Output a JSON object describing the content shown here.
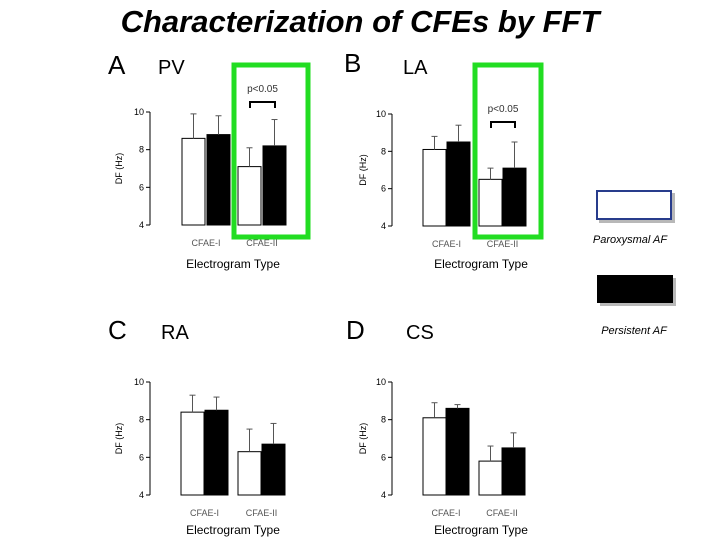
{
  "title": "Characterization of CFEs by FFT",
  "legend": {
    "paroxysmal": {
      "label": "Paroxysmal AF",
      "color": "#ffffff",
      "border": "#283c8c"
    },
    "persistent": {
      "label": "Persistent AF",
      "color": "#000000",
      "border": "#000000"
    }
  },
  "highlight_color": "#22dd22",
  "chart_data": [
    {
      "panel": "A",
      "region": "PV",
      "type": "bar",
      "xlabel": "Electrogram Type",
      "ylabel": "DF (Hz)",
      "ylim": [
        4,
        10
      ],
      "yticks": [
        4,
        6,
        8,
        10
      ],
      "categories": [
        "CFAE-I",
        "CFAE-II"
      ],
      "series": [
        {
          "name": "Paroxysmal AF",
          "values": [
            8.6,
            7.1
          ],
          "errors": [
            1.3,
            1.0
          ]
        },
        {
          "name": "Persistent AF",
          "values": [
            8.8,
            8.2
          ],
          "errors": [
            1.0,
            1.4
          ]
        }
      ],
      "annotation": "p<0.05",
      "highlight": "CFAE-II"
    },
    {
      "panel": "B",
      "region": "LA",
      "type": "bar",
      "xlabel": "Electrogram Type",
      "ylabel": "DF (Hz)",
      "ylim": [
        4,
        10
      ],
      "yticks": [
        4,
        6,
        8,
        10
      ],
      "categories": [
        "CFAE-I",
        "CFAE-II"
      ],
      "series": [
        {
          "name": "Paroxysmal AF",
          "values": [
            8.1,
            6.5
          ],
          "errors": [
            0.7,
            0.6
          ]
        },
        {
          "name": "Persistent AF",
          "values": [
            8.5,
            7.1
          ],
          "errors": [
            0.9,
            1.4
          ]
        }
      ],
      "annotation": "p<0.05",
      "highlight": "CFAE-II"
    },
    {
      "panel": "C",
      "region": "RA",
      "type": "bar",
      "xlabel": "Electrogram Type",
      "ylabel": "DF (Hz)",
      "ylim": [
        4,
        10
      ],
      "yticks": [
        4,
        6,
        8,
        10
      ],
      "categories": [
        "CFAE-I",
        "CFAE-II"
      ],
      "series": [
        {
          "name": "Paroxysmal AF",
          "values": [
            8.4,
            6.3
          ],
          "errors": [
            0.9,
            1.2
          ]
        },
        {
          "name": "Persistent AF",
          "values": [
            8.5,
            6.7
          ],
          "errors": [
            0.7,
            1.1
          ]
        }
      ],
      "annotation": "",
      "highlight": ""
    },
    {
      "panel": "D",
      "region": "CS",
      "type": "bar",
      "xlabel": "Electrogram Type",
      "ylabel": "DF (Hz)",
      "ylim": [
        4,
        10
      ],
      "yticks": [
        4,
        6,
        8,
        10
      ],
      "categories": [
        "CFAE-I",
        "CFAE-II"
      ],
      "series": [
        {
          "name": "Paroxysmal AF",
          "values": [
            8.1,
            5.8
          ],
          "errors": [
            0.8,
            0.8
          ]
        },
        {
          "name": "Persistent AF",
          "values": [
            8.6,
            6.5
          ],
          "errors": [
            0.2,
            0.8
          ]
        }
      ],
      "annotation": "",
      "highlight": ""
    }
  ]
}
